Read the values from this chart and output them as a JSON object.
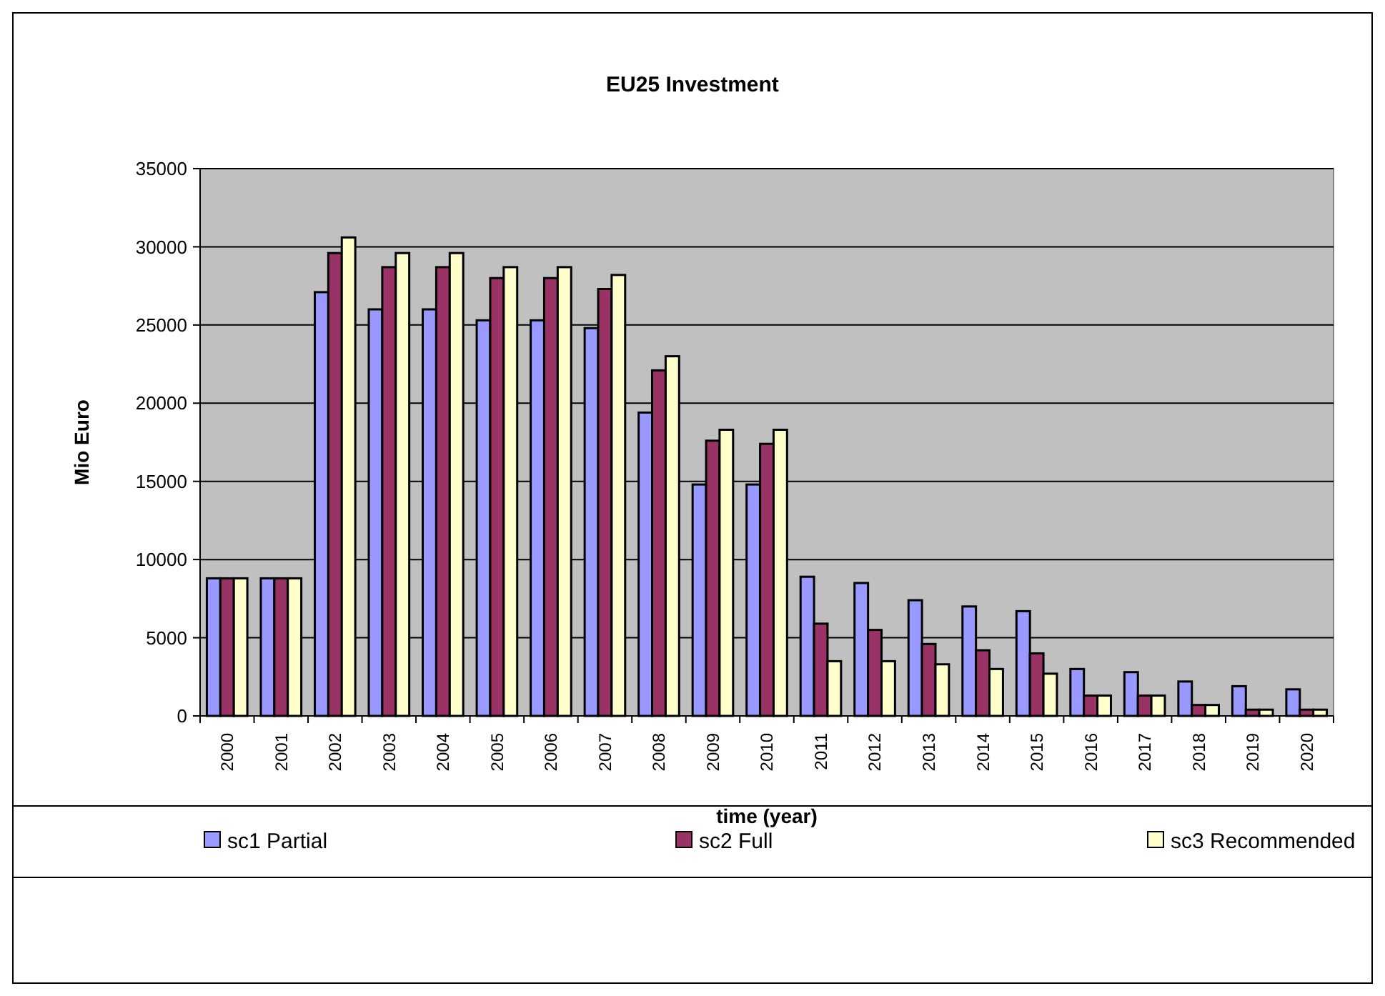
{
  "chart_data": {
    "type": "bar",
    "title": "EU25 Investment",
    "xlabel": "time (year)",
    "ylabel": "Mio Euro",
    "categories": [
      "2000",
      "2001",
      "2002",
      "2003",
      "2004",
      "2005",
      "2006",
      "2007",
      "2008",
      "2009",
      "2010",
      "2011",
      "2012",
      "2013",
      "2014",
      "2015",
      "2016",
      "2017",
      "2018",
      "2019",
      "2020"
    ],
    "series": [
      {
        "name": "sc1 Partial",
        "color": "#9999ff",
        "values": [
          8800,
          8800,
          27100,
          26000,
          26000,
          25300,
          25300,
          24800,
          19400,
          14800,
          14800,
          8900,
          8500,
          7400,
          7000,
          6700,
          3000,
          2800,
          2200,
          1900,
          1700
        ]
      },
      {
        "name": "sc2 Full",
        "color": "#993366",
        "values": [
          8800,
          8800,
          29600,
          28700,
          28700,
          28000,
          28000,
          27300,
          22100,
          17600,
          17400,
          5900,
          5500,
          4600,
          4200,
          4000,
          1300,
          1300,
          700,
          400,
          400
        ]
      },
      {
        "name": "sc3 Recommended",
        "color": "#ffffcc",
        "values": [
          8800,
          8800,
          30600,
          29600,
          29600,
          28700,
          28700,
          28200,
          23000,
          18300,
          18300,
          3500,
          3500,
          3300,
          3000,
          2700,
          1300,
          1300,
          700,
          400,
          400
        ]
      }
    ],
    "ylim": [
      0,
      35000
    ],
    "yticks": [
      0,
      5000,
      10000,
      15000,
      20000,
      25000,
      30000,
      35000
    ],
    "grid": "y",
    "legend": "bottom"
  }
}
